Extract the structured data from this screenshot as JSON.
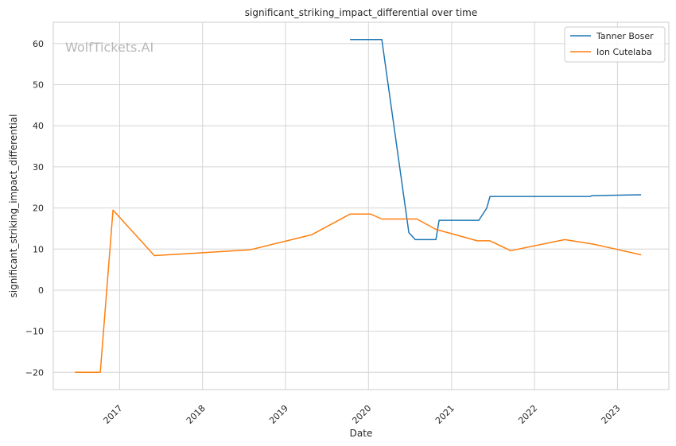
{
  "chart_data": {
    "type": "line",
    "title": "significant_striking_impact_differential over time",
    "xlabel": "Date",
    "ylabel": "significant_striking_impact_differential",
    "watermark": "WolfTickets.AI",
    "x_ticks": [
      "2017",
      "2018",
      "2019",
      "2020",
      "2021",
      "2022",
      "2023"
    ],
    "y_ticks": [
      -20,
      -10,
      0,
      10,
      20,
      30,
      40,
      50,
      60
    ],
    "xlim": [
      "2016-03-15",
      "2023-08-15"
    ],
    "ylim": [
      -24.2,
      65.2
    ],
    "grid": true,
    "legend_position": "top-right",
    "series": [
      {
        "name": "Tanner Boser",
        "color": "#1f77b4",
        "points": [
          [
            "2019-10-12",
            61
          ],
          [
            "2020-02-29",
            61
          ],
          [
            "2020-06-27",
            14
          ],
          [
            "2020-07-25",
            12.3
          ],
          [
            "2020-10-24",
            12.3
          ],
          [
            "2020-11-07",
            17
          ],
          [
            "2021-05-01",
            17
          ],
          [
            "2021-06-05",
            20
          ],
          [
            "2021-06-19",
            22.8
          ],
          [
            "2022-09-03",
            22.8
          ],
          [
            "2022-09-10",
            23
          ],
          [
            "2023-04-15",
            23.2
          ]
        ]
      },
      {
        "name": "Ion Cutelaba",
        "color": "#ff7f0e",
        "points": [
          [
            "2016-06-18",
            -20
          ],
          [
            "2016-10-08",
            -20
          ],
          [
            "2016-12-03",
            19.5
          ],
          [
            "2017-06-03",
            8.4
          ],
          [
            "2018-07-28",
            9.8
          ],
          [
            "2019-04-27",
            13.5
          ],
          [
            "2019-10-12",
            18.5
          ],
          [
            "2020-01-11",
            18.5
          ],
          [
            "2020-02-29",
            17.3
          ],
          [
            "2020-08-01",
            17.3
          ],
          [
            "2020-10-24",
            14.8
          ],
          [
            "2021-04-24",
            12
          ],
          [
            "2021-06-19",
            12
          ],
          [
            "2021-09-18",
            9.6
          ],
          [
            "2022-05-14",
            12.3
          ],
          [
            "2022-09-17",
            11.2
          ],
          [
            "2023-04-15",
            8.6
          ]
        ]
      }
    ]
  }
}
